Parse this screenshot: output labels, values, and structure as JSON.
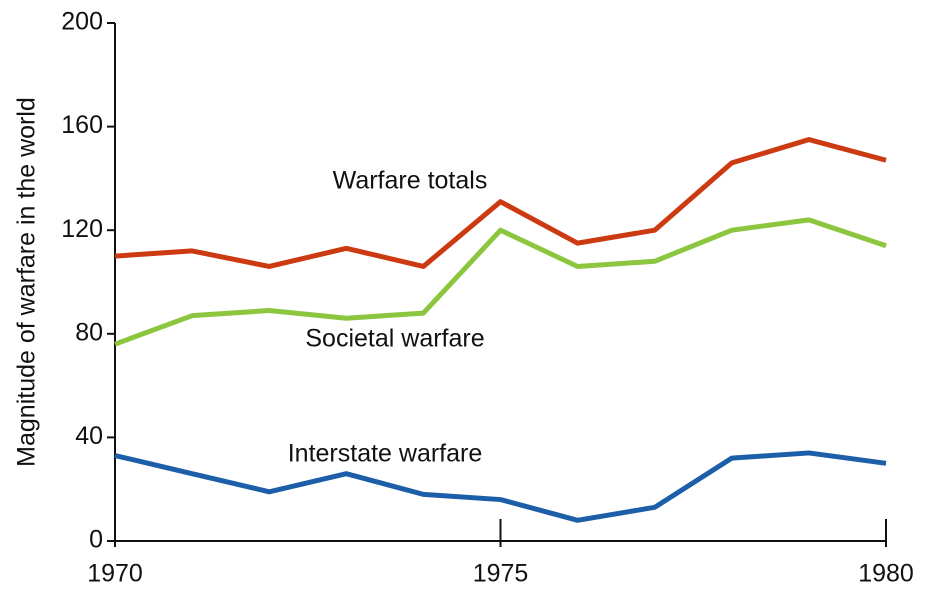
{
  "chart_data": {
    "type": "line",
    "y_label": "Magnitude of warfare in the world",
    "x": [
      1970,
      1971,
      1972,
      1973,
      1974,
      1975,
      1976,
      1977,
      1978,
      1979,
      1980
    ],
    "series": [
      {
        "name": "Warfare totals",
        "color": "#cc3a12",
        "values": [
          110,
          112,
          106,
          113,
          106,
          131,
          115,
          120,
          146,
          155,
          147
        ]
      },
      {
        "name": "Societal warfare",
        "color": "#8cc63e",
        "values": [
          76,
          87,
          89,
          86,
          88,
          120,
          106,
          108,
          120,
          124,
          114
        ]
      },
      {
        "name": "Interstate warfare",
        "color": "#1d5ea8",
        "values": [
          33,
          26,
          19,
          26,
          18,
          16,
          8,
          13,
          32,
          34,
          30
        ]
      }
    ],
    "xlim": [
      1970,
      1980
    ],
    "xticks": [
      1970,
      1975,
      1980
    ],
    "ylim": [
      0,
      200
    ],
    "yticks": [
      0,
      40,
      80,
      120,
      160,
      200
    ]
  }
}
